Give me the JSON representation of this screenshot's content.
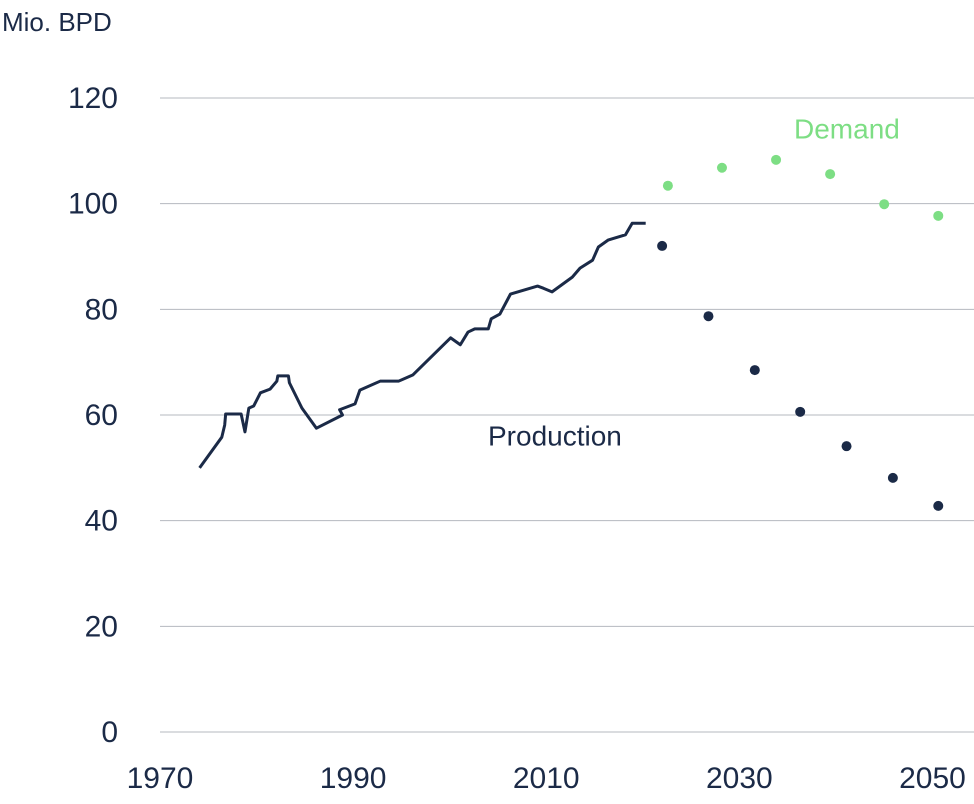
{
  "chart_data": {
    "type": "line",
    "ylabel": "Mio. BPD",
    "xlim": [
      1970,
      2054.3
    ],
    "xticks": [
      1970,
      1990,
      2010,
      2030,
      2050
    ],
    "ylim": [
      0,
      120
    ],
    "yticks": [
      0,
      20,
      40,
      60,
      80,
      100,
      120
    ],
    "grid": true,
    "series": [
      {
        "name": "Production",
        "color": "#1b2a47",
        "mode": "line",
        "x": [
          1974.1,
          1976.4,
          1976.7,
          1976.8,
          1978.4,
          1978.8,
          1979.2,
          1979.7,
          1980.4,
          1981.4,
          1982.1,
          1982.2,
          1983.3,
          1983.4,
          1984.7,
          1986.2,
          1988.9,
          1988.6,
          1990.2,
          1990.7,
          1992.8,
          1994.7,
          1996.2,
          2000.1,
          2001.1,
          2001.9,
          2002.6,
          2004.0,
          2004.3,
          2005.2,
          2006.3,
          2009.1,
          2009.7,
          2010.6,
          2012.7,
          2013.5,
          2014.8,
          2015.4,
          2016.4,
          2018.2,
          2018.9,
          2020.3
        ],
        "values": [
          50.0,
          55.8,
          58.1,
          60.2,
          60.2,
          56.8,
          61.3,
          61.7,
          64.2,
          64.9,
          66.4,
          67.4,
          67.4,
          66.1,
          61.3,
          57.5,
          60.0,
          61.0,
          62.1,
          64.7,
          66.4,
          66.4,
          67.6,
          74.6,
          73.3,
          75.7,
          76.3,
          76.3,
          78.2,
          79.1,
          82.9,
          84.4,
          84.0,
          83.3,
          86.1,
          87.8,
          89.3,
          91.8,
          93.1,
          94.1,
          96.3,
          96.3
        ]
      },
      {
        "color": "#1b2a47",
        "mode": "markers",
        "x": [
          2022.0,
          2026.8,
          2031.6,
          2036.3,
          2041.1,
          2045.9,
          2050.6
        ],
        "values": [
          92.0,
          78.7,
          68.5,
          60.6,
          54.1,
          48.1,
          42.8
        ]
      },
      {
        "name": "Demand",
        "color": "#7dde84",
        "mode": "markers",
        "x": [
          2022.6,
          2028.2,
          2033.8,
          2039.4,
          2045.0,
          2050.6
        ],
        "values": [
          103.4,
          106.8,
          108.3,
          105.6,
          99.9,
          97.7
        ]
      }
    ]
  }
}
